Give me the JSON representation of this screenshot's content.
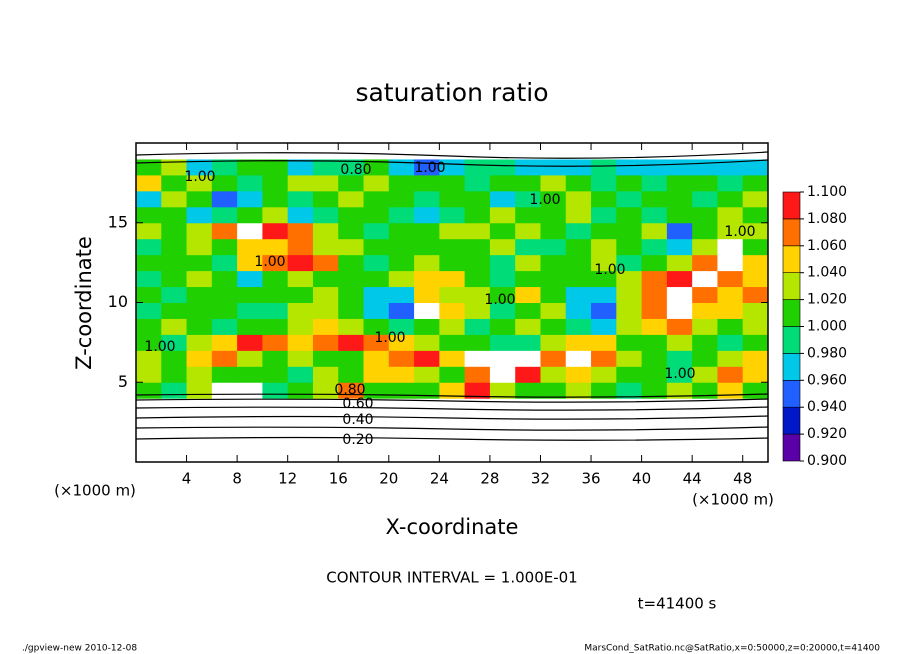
{
  "chart_data": {
    "type": "contour",
    "title": "saturation ratio",
    "xlabel": "X-coordinate",
    "ylabel": "Z-coordinate",
    "xunit": "(×1000 m)",
    "yunit": "(×1000 m)",
    "xlim": [
      0,
      50
    ],
    "ylim": [
      0,
      20
    ],
    "xticks": [
      4,
      8,
      12,
      16,
      20,
      24,
      28,
      32,
      36,
      40,
      44,
      48
    ],
    "yticks": [
      5,
      10,
      15
    ],
    "x": [
      1,
      3,
      5,
      7,
      9,
      11,
      13,
      15,
      17,
      19,
      21,
      23,
      25,
      27,
      29,
      31,
      33,
      35,
      37,
      39,
      41,
      43,
      45,
      47,
      49
    ],
    "y": [
      0.5,
      1.5,
      2.5,
      3.5,
      4.5,
      5.5,
      6.5,
      7.5,
      8.5,
      9.5,
      10.5,
      11.5,
      12.5,
      13.5,
      14.5,
      15.5,
      16.5,
      17.5,
      18.5,
      19.5
    ],
    "z": [
      [
        0.1,
        0.1,
        0.1,
        0.1,
        0.1,
        0.1,
        0.1,
        0.1,
        0.1,
        0.1,
        0.1,
        0.1,
        0.1,
        0.1,
        0.1,
        0.1,
        0.1,
        0.1,
        0.1,
        0.1,
        0.1,
        0.1,
        0.1,
        0.1,
        0.1
      ],
      [
        0.3,
        0.3,
        0.3,
        0.3,
        0.3,
        0.3,
        0.3,
        0.3,
        0.3,
        0.3,
        0.3,
        0.3,
        0.3,
        0.3,
        0.3,
        0.3,
        0.3,
        0.3,
        0.3,
        0.3,
        0.3,
        0.3,
        0.3,
        0.3,
        0.3
      ],
      [
        0.5,
        0.5,
        0.5,
        0.5,
        0.5,
        0.5,
        0.5,
        0.5,
        0.5,
        0.5,
        0.5,
        0.5,
        0.5,
        0.5,
        0.5,
        0.5,
        0.5,
        0.5,
        0.5,
        0.5,
        0.5,
        0.5,
        0.5,
        0.5,
        0.5
      ],
      [
        0.7,
        0.7,
        0.7,
        0.7,
        0.7,
        0.7,
        0.7,
        0.7,
        0.7,
        0.7,
        0.7,
        0.7,
        0.7,
        0.7,
        0.7,
        0.7,
        0.7,
        0.7,
        0.7,
        0.7,
        0.7,
        0.7,
        0.7,
        0.7,
        0.7
      ],
      [
        1.0,
        0.99,
        1.02,
        1.12,
        1.12,
        0.98,
        1.0,
        1.02,
        1.06,
        1.01,
        1.0,
        1.0,
        1.04,
        1.08,
        1.02,
        1.0,
        1.0,
        1.03,
        1.0,
        0.99,
        1.0,
        1.02,
        1.0,
        1.04,
        1.0
      ],
      [
        1.03,
        1.0,
        1.02,
        1.0,
        1.01,
        1.0,
        0.99,
        1.02,
        1.0,
        1.05,
        1.04,
        1.02,
        1.01,
        1.06,
        1.12,
        1.08,
        1.02,
        1.05,
        1.03,
        1.0,
        1.0,
        0.99,
        1.03,
        1.06,
        1.04
      ],
      [
        1.02,
        1.01,
        1.04,
        1.06,
        1.03,
        1.0,
        1.02,
        1.0,
        1.01,
        1.04,
        1.06,
        1.08,
        1.05,
        1.12,
        1.12,
        1.1,
        1.07,
        1.12,
        1.06,
        1.02,
        1.0,
        0.98,
        1.0,
        1.02,
        1.05
      ],
      [
        1.0,
        0.99,
        1.02,
        1.05,
        1.08,
        1.06,
        1.04,
        1.06,
        1.08,
        1.07,
        1.04,
        1.02,
        1.01,
        1.0,
        0.98,
        0.99,
        1.03,
        1.05,
        1.04,
        1.0,
        1.01,
        1.03,
        1.0,
        0.98,
        1.0
      ],
      [
        1.0,
        1.02,
        1.0,
        0.98,
        1.0,
        1.01,
        1.02,
        1.04,
        1.03,
        1.01,
        0.99,
        1.0,
        1.02,
        0.99,
        1.01,
        1.03,
        1.0,
        0.98,
        0.97,
        1.02,
        1.04,
        1.06,
        1.03,
        1.0,
        1.02
      ],
      [
        0.99,
        1.01,
        1.0,
        1.0,
        0.99,
        0.98,
        1.02,
        1.03,
        1.0,
        0.96,
        0.95,
        1.12,
        1.05,
        1.02,
        0.98,
        1.0,
        1.03,
        0.96,
        0.95,
        1.03,
        1.06,
        1.12,
        1.05,
        1.04,
        1.03
      ],
      [
        1.0,
        0.98,
        1.0,
        1.01,
        1.0,
        1.0,
        1.0,
        1.02,
        1.0,
        0.97,
        0.96,
        1.04,
        1.03,
        1.03,
        1.01,
        1.05,
        1.0,
        0.97,
        0.96,
        1.02,
        1.07,
        1.12,
        1.06,
        1.05,
        1.07
      ],
      [
        0.99,
        1.0,
        1.02,
        1.0,
        0.97,
        1.0,
        1.02,
        1.0,
        1.01,
        1.0,
        1.02,
        1.05,
        1.04,
        1.0,
        0.98,
        1.0,
        1.01,
        1.0,
        1.0,
        1.03,
        1.06,
        1.08,
        1.12,
        1.07,
        1.04
      ],
      [
        1.0,
        1.01,
        1.0,
        0.99,
        1.04,
        1.06,
        1.08,
        1.06,
        1.0,
        0.98,
        1.0,
        1.02,
        1.0,
        1.0,
        0.99,
        1.02,
        1.0,
        1.01,
        1.03,
        0.98,
        1.0,
        1.02,
        1.06,
        1.12,
        1.04
      ],
      [
        0.98,
        1.0,
        1.02,
        1.0,
        1.04,
        1.05,
        1.06,
        1.03,
        1.02,
        1.0,
        1.0,
        1.01,
        1.0,
        1.0,
        1.02,
        0.98,
        0.99,
        1.0,
        1.02,
        1.0,
        0.99,
        0.97,
        1.03,
        1.12,
        1.0
      ],
      [
        1.02,
        1.0,
        1.03,
        1.06,
        1.12,
        1.08,
        1.06,
        1.02,
        1.0,
        0.98,
        1.0,
        1.0,
        1.02,
        1.03,
        1.0,
        1.02,
        1.01,
        0.99,
        1.0,
        1.0,
        1.02,
        0.95,
        1.0,
        1.02,
        1.03
      ],
      [
        1.01,
        1.0,
        0.96,
        0.98,
        1.0,
        1.02,
        0.97,
        0.99,
        1.0,
        1.01,
        0.99,
        0.96,
        0.98,
        1.0,
        1.02,
        1.0,
        1.0,
        1.02,
        0.98,
        1.0,
        0.99,
        1.0,
        1.01,
        1.03,
        1.0
      ],
      [
        0.96,
        1.02,
        1.0,
        0.94,
        0.96,
        1.0,
        0.99,
        1.0,
        1.02,
        1.0,
        1.01,
        0.99,
        1.0,
        1.0,
        0.96,
        0.99,
        1.0,
        1.02,
        1.01,
        0.99,
        1.0,
        1.0,
        0.98,
        1.0,
        1.02
      ],
      [
        1.04,
        1.0,
        1.02,
        1.0,
        0.98,
        1.0,
        1.03,
        1.02,
        1.0,
        1.02,
        1.0,
        1.01,
        1.0,
        0.98,
        1.0,
        1.01,
        1.02,
        1.0,
        0.99,
        1.0,
        0.98,
        1.0,
        1.0,
        0.99,
        1.0
      ],
      [
        1.0,
        1.02,
        0.96,
        0.98,
        1.0,
        1.0,
        0.97,
        0.98,
        0.99,
        1.0,
        0.96,
        0.95,
        0.97,
        0.98,
        0.99,
        0.97,
        0.96,
        0.97,
        0.98,
        0.97,
        0.96,
        0.96,
        0.97,
        0.96,
        0.97
      ],
      [
        0.75,
        0.75,
        0.75,
        0.75,
        0.75,
        0.75,
        0.75,
        0.75,
        0.75,
        0.75,
        0.75,
        0.75,
        0.75,
        0.75,
        0.75,
        0.75,
        0.75,
        0.75,
        0.75,
        0.75,
        0.75,
        0.75,
        0.75,
        0.75,
        0.75
      ]
    ],
    "colorbar": {
      "levels": [
        {
          "value": 0.9,
          "label": "0.900"
        },
        {
          "value": 0.92,
          "label": "0.920"
        },
        {
          "value": 0.94,
          "label": "0.940"
        },
        {
          "value": 0.96,
          "label": "0.960"
        },
        {
          "value": 0.98,
          "label": "0.980"
        },
        {
          "value": 1.0,
          "label": "1.000"
        },
        {
          "value": 1.02,
          "label": "1.020"
        },
        {
          "value": 1.04,
          "label": "1.040"
        },
        {
          "value": 1.06,
          "label": "1.060"
        },
        {
          "value": 1.08,
          "label": "1.080"
        },
        {
          "value": 1.1,
          "label": "1.100"
        }
      ],
      "colors": [
        "#5a00a8",
        "#0018c8",
        "#2060ff",
        "#00c8e8",
        "#00dc78",
        "#20d000",
        "#b4e600",
        "#ffd200",
        "#ff7000",
        "#ff1818"
      ],
      "over_color": "#ff9a9a"
    },
    "contour_labels": [
      "0.80",
      "1.00",
      "1.00",
      "1.00",
      "1.00",
      "1.00",
      "1.00",
      "1.00",
      "1.00",
      "1.00",
      "1.00",
      "0.20",
      "0.40",
      "0.60",
      "0.80"
    ],
    "contour_interval": "CONTOUR INTERVAL = 1.000E-01",
    "time": "t=41400 s",
    "footer_left": "./gpview-new   2010-12-08",
    "footer_right": "MarsCond_SatRatio.nc@SatRatio,x=0:50000,z=0:20000,t=41400"
  }
}
